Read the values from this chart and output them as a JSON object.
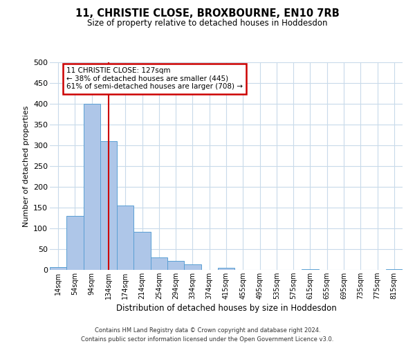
{
  "title": "11, CHRISTIE CLOSE, BROXBOURNE, EN10 7RB",
  "subtitle": "Size of property relative to detached houses in Hoddesdon",
  "xlabel": "Distribution of detached houses by size in Hoddesdon",
  "ylabel": "Number of detached properties",
  "footer_line1": "Contains HM Land Registry data © Crown copyright and database right 2024.",
  "footer_line2": "Contains public sector information licensed under the Open Government Licence v3.0.",
  "bar_labels": [
    "14sqm",
    "54sqm",
    "94sqm",
    "134sqm",
    "174sqm",
    "214sqm",
    "254sqm",
    "294sqm",
    "334sqm",
    "374sqm",
    "415sqm",
    "455sqm",
    "495sqm",
    "535sqm",
    "575sqm",
    "615sqm",
    "655sqm",
    "695sqm",
    "735sqm",
    "775sqm",
    "815sqm"
  ],
  "bar_values": [
    6,
    130,
    400,
    310,
    155,
    92,
    30,
    22,
    14,
    0,
    5,
    0,
    0,
    0,
    0,
    2,
    0,
    0,
    0,
    0,
    2
  ],
  "bar_color": "#aec6e8",
  "bar_edgecolor": "#5a9fd4",
  "ylim": [
    0,
    500
  ],
  "yticks": [
    0,
    50,
    100,
    150,
    200,
    250,
    300,
    350,
    400,
    450,
    500
  ],
  "vline_x": 3.0,
  "vline_color": "#cc0000",
  "annotation_title": "11 CHRISTIE CLOSE: 127sqm",
  "annotation_line1": "← 38% of detached houses are smaller (445)",
  "annotation_line2": "61% of semi-detached houses are larger (708) →",
  "annotation_box_color": "#cc0000",
  "bg_color": "#ffffff",
  "grid_color": "#c8daea"
}
